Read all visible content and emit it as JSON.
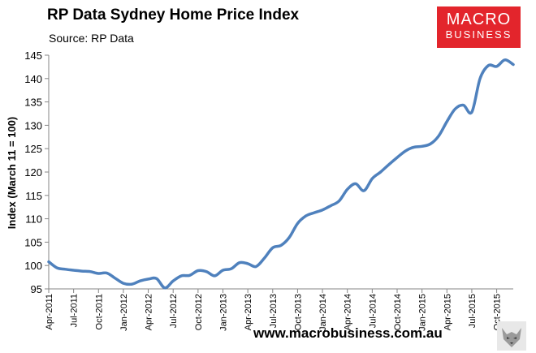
{
  "header": {
    "title": "RP Data Sydney Home Price Index",
    "subtitle": "Source: RP Data"
  },
  "logo": {
    "line1": "MACRO",
    "line2": "BUSINESS",
    "color": "#e3252c"
  },
  "footer": {
    "url": "www.macrobusiness.com.au"
  },
  "chart_data": {
    "type": "line",
    "title": "RP Data Sydney Home Price Index",
    "subtitle": "Source: RP Data",
    "ylabel": "Index (March 11 = 100)",
    "xlabel": "",
    "ylim": [
      95,
      145
    ],
    "yticks": [
      95,
      100,
      105,
      110,
      115,
      120,
      125,
      130,
      135,
      140,
      145
    ],
    "xlim": [
      "2011-04",
      "2015-12"
    ],
    "xticks": [
      "Apr-2011",
      "Jul-2011",
      "Oct-2011",
      "Jan-2012",
      "Apr-2012",
      "Jul-2012",
      "Oct-2012",
      "Jan-2013",
      "Apr-2013",
      "Jul-2013",
      "Oct-2013",
      "Jan-2014",
      "Apr-2014",
      "Jul-2014",
      "Oct-2014",
      "Jan-2015",
      "Apr-2015",
      "Jul-2015",
      "Oct-2015"
    ],
    "grid": false,
    "legend": "none",
    "line_color": "#4f81bd",
    "series": [
      {
        "x": [
          "2011-04",
          "2011-05",
          "2011-06",
          "2011-07",
          "2011-08",
          "2011-09",
          "2011-10",
          "2011-11",
          "2011-12",
          "2012-01",
          "2012-02",
          "2012-03",
          "2012-04",
          "2012-05",
          "2012-06",
          "2012-07",
          "2012-08",
          "2012-09",
          "2012-10",
          "2012-11",
          "2012-12",
          "2013-01",
          "2013-02",
          "2013-03",
          "2013-04",
          "2013-05",
          "2013-06",
          "2013-07",
          "2013-08",
          "2013-09",
          "2013-10",
          "2013-11",
          "2013-12",
          "2014-01",
          "2014-02",
          "2014-03",
          "2014-04",
          "2014-05",
          "2014-06",
          "2014-07",
          "2014-08",
          "2014-09",
          "2014-10",
          "2014-11",
          "2014-12",
          "2015-01",
          "2015-02",
          "2015-03",
          "2015-04",
          "2015-05",
          "2015-06",
          "2015-07",
          "2015-08",
          "2015-09",
          "2015-10",
          "2015-11",
          "2015-12"
        ],
        "values": [
          100.8,
          99.5,
          99.2,
          99.0,
          98.8,
          98.7,
          98.3,
          98.4,
          97.3,
          96.2,
          96.0,
          96.7,
          97.1,
          97.2,
          95.2,
          96.7,
          97.8,
          97.9,
          98.9,
          98.7,
          97.8,
          99.0,
          99.3,
          100.6,
          100.4,
          99.8,
          101.6,
          103.8,
          104.3,
          106.0,
          109.0,
          110.6,
          111.3,
          111.9,
          112.8,
          113.8,
          116.3,
          117.5,
          116.0,
          118.6,
          120.0,
          121.6,
          123.1,
          124.5,
          125.3,
          125.5,
          126.0,
          127.7,
          130.8,
          133.5,
          134.3,
          132.8,
          140.0,
          142.8,
          142.6,
          144.0,
          143.0
        ]
      }
    ]
  }
}
